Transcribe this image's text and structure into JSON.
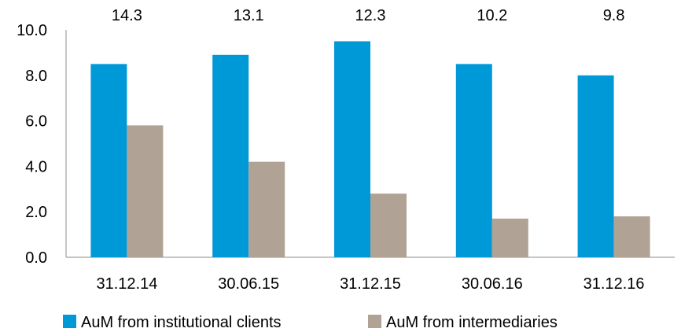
{
  "chart_data": {
    "type": "bar",
    "categories": [
      "31.12.14",
      "30.06.15",
      "31.12.15",
      "30.06.16",
      "31.12.16"
    ],
    "series": [
      {
        "name": "AuM from institutional clients",
        "values": [
          8.5,
          8.9,
          9.5,
          8.5,
          8.0
        ],
        "color": "#0099D8"
      },
      {
        "name": "AuM from intermediaries",
        "values": [
          5.8,
          4.2,
          2.8,
          1.7,
          1.8
        ],
        "color": "#B0A395"
      }
    ],
    "totals": [
      "14.3",
      "13.1",
      "12.3",
      "10.2",
      "9.8"
    ],
    "yticks": [
      "0.0",
      "2.0",
      "4.0",
      "6.0",
      "8.0",
      "10.0"
    ],
    "ylim": [
      0,
      10
    ],
    "grid": false,
    "legend": "bottom"
  }
}
